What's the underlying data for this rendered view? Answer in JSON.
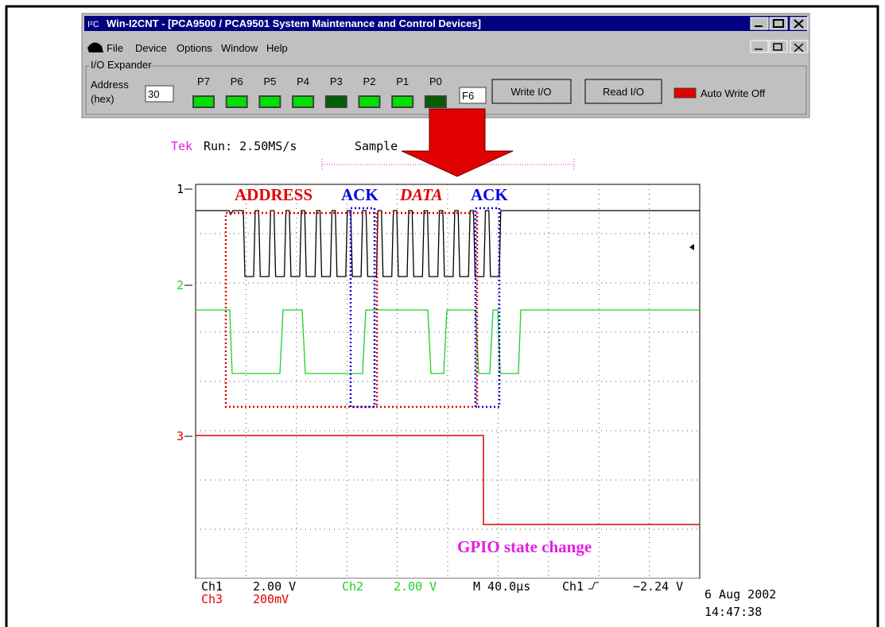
{
  "window": {
    "icon": "I²C",
    "title": "Win-I2CNT - [PCA9500 / PCA9501 System Maintenance and Control Devices]",
    "menu": [
      "File",
      "Device",
      "Options",
      "Window",
      "Help"
    ],
    "group": "I/O Expander",
    "address_label": [
      "Address",
      "(hex)"
    ],
    "address": "30",
    "pins": [
      {
        "label": "P7",
        "on": true
      },
      {
        "label": "P6",
        "on": true
      },
      {
        "label": "P5",
        "on": true
      },
      {
        "label": "P4",
        "on": true
      },
      {
        "label": "P3",
        "on": false
      },
      {
        "label": "P2",
        "on": true
      },
      {
        "label": "P1",
        "on": true
      },
      {
        "label": "P0",
        "on": false
      }
    ],
    "hex": "F6",
    "write_button": "Write I/O",
    "read_button": "Read I/O",
    "auto_write": "Auto Write Off"
  },
  "scope": {
    "brand": "Tek",
    "run": "Run: 2.50MS/s",
    "mode": "Sample",
    "channels": [
      "1",
      "2",
      "3"
    ],
    "annotations": {
      "address": "ADDRESS",
      "ack1": "ACK",
      "data": "DATA",
      "ack2": "ACK",
      "gpio": "GPIO state change"
    },
    "readout": {
      "ch1": "Ch1",
      "ch1_scale": "2.00 V",
      "ch2": "Ch2",
      "ch2_scale": "2.00 V",
      "time": "M 40.0µs",
      "trig_src": "Ch1",
      "trig_level": "−2.24 V",
      "ch3": "Ch3",
      "ch3_scale": "200mV"
    },
    "date": "6 Aug 2002",
    "time": "14:47:38"
  }
}
